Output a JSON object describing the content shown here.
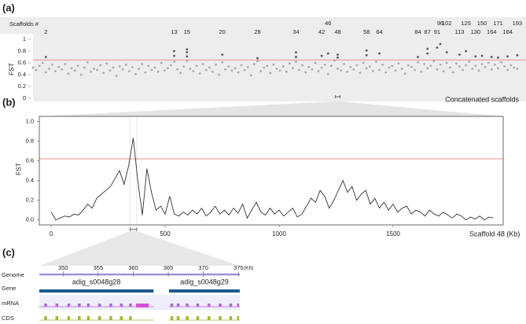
{
  "chart_data": [
    {
      "type": "scatter",
      "label": "(a)",
      "scaffold_title": "Scaffolds #",
      "ylabel": "FST",
      "xlabel": "Concatenated scaffolds",
      "xlim": [
        0,
        152
      ],
      "ylim": [
        0,
        1
      ],
      "yticks": [
        0,
        0.2,
        0.4,
        0.6,
        0.8,
        1
      ],
      "threshold": 0.65,
      "threshold_color": "#e8908a",
      "scaffolds": {
        "labels": [
          "2",
          "13",
          "15",
          "20",
          "28",
          "34",
          "42",
          "46",
          "48",
          "58",
          "64",
          "84",
          "87",
          "91",
          "96",
          "102",
          "113",
          "125",
          "130",
          "150",
          "164",
          "171",
          "184",
          "193"
        ],
        "x": [
          4,
          44,
          48,
          59,
          70,
          82,
          90,
          92,
          95,
          104,
          108,
          120,
          123,
          126,
          127,
          129,
          133,
          135,
          138,
          140,
          143,
          145,
          148,
          151
        ]
      },
      "series": [
        {
          "color": "#a8a8a8",
          "x": [
            0,
            1,
            2,
            3,
            4,
            5,
            6,
            7,
            8,
            9,
            10,
            11,
            12,
            13,
            14,
            15,
            16,
            17,
            18,
            19,
            20,
            21,
            22,
            23,
            24,
            25,
            26,
            27,
            28,
            29,
            30,
            31,
            32,
            33,
            34,
            35,
            36,
            37,
            38,
            39,
            40,
            41,
            42,
            43,
            44,
            45,
            46,
            47,
            48,
            49,
            50,
            51,
            52,
            53,
            54,
            55,
            56,
            57,
            58,
            59,
            60,
            61,
            62,
            63,
            64,
            65,
            66,
            67,
            68,
            69,
            70,
            71,
            72,
            73,
            74,
            75,
            76,
            77,
            78,
            79,
            80,
            81,
            82,
            83,
            84,
            85,
            86,
            87,
            88,
            89,
            90,
            91,
            92,
            93,
            94,
            95,
            96,
            97,
            98,
            99,
            100,
            101,
            102,
            103,
            104,
            105,
            106,
            107,
            108,
            109,
            110,
            111,
            112,
            113,
            114,
            115,
            116,
            117,
            118,
            119,
            120,
            121,
            122,
            123,
            124,
            125,
            126,
            127,
            128,
            129,
            130,
            131,
            132,
            133,
            134,
            135,
            136,
            137,
            138,
            139,
            140,
            141,
            142,
            143,
            144,
            145,
            146,
            147,
            148,
            149,
            150,
            151
          ],
          "values": [
            0.52,
            0.48,
            0.55,
            0.6,
            0.44,
            0.5,
            0.57,
            0.46,
            0.53,
            0.49,
            0.58,
            0.42,
            0.51,
            0.47,
            0.55,
            0.4,
            0.52,
            0.61,
            0.45,
            0.5,
            0.48,
            0.56,
            0.43,
            0.59,
            0.47,
            0.52,
            0.38,
            0.54,
            0.49,
            0.57,
            0.46,
            0.53,
            0.41,
            0.5,
            0.58,
            0.44,
            0.55,
            0.48,
            0.52,
            0.45,
            0.6,
            0.47,
            0.51,
            0.56,
            0.62,
            0.49,
            0.43,
            0.54,
            0.63,
            0.5,
            0.46,
            0.55,
            0.42,
            0.58,
            0.48,
            0.52,
            0.45,
            0.57,
            0.4,
            0.61,
            0.49,
            0.54,
            0.47,
            0.51,
            0.44,
            0.56,
            0.48,
            0.53,
            0.39,
            0.58,
            0.63,
            0.46,
            0.52,
            0.55,
            0.43,
            0.57,
            0.5,
            0.47,
            0.54,
            0.45,
            0.59,
            0.51,
            0.62,
            0.48,
            0.56,
            0.44,
            0.53,
            0.49,
            0.6,
            0.46,
            0.52,
            0.57,
            0.41,
            0.55,
            0.64,
            0.5,
            0.47,
            0.58,
            0.45,
            0.53,
            0.49,
            0.56,
            0.43,
            0.6,
            0.51,
            0.54,
            0.46,
            0.62,
            0.48,
            0.57,
            0.44,
            0.52,
            0.55,
            0.47,
            0.59,
            0.5,
            0.42,
            0.56,
            0.53,
            0.48,
            0.61,
            0.45,
            0.58,
            0.51,
            0.55,
            0.63,
            0.49,
            0.57,
            0.46,
            0.6,
            0.52,
            0.44,
            0.59,
            0.54,
            0.48,
            0.56,
            0.62,
            0.5,
            0.55,
            0.47,
            0.58,
            0.53,
            0.6,
            0.49,
            0.57,
            0.51,
            0.61,
            0.54,
            0.48,
            0.56,
            0.52,
            0.5
          ]
        },
        {
          "color": "#555555",
          "x": [
            4,
            44,
            44,
            48,
            48,
            48,
            59,
            70,
            82,
            82,
            90,
            92,
            95,
            95,
            104,
            104,
            108,
            120,
            123,
            123,
            126,
            127,
            129,
            133,
            135,
            138,
            140,
            143,
            145,
            148,
            151
          ],
          "values": [
            0.7,
            0.72,
            0.8,
            0.71,
            0.78,
            0.83,
            0.74,
            0.68,
            0.7,
            0.78,
            0.72,
            0.76,
            0.69,
            0.74,
            0.73,
            0.81,
            0.76,
            0.7,
            0.76,
            0.84,
            0.86,
            0.92,
            0.78,
            0.74,
            0.8,
            0.71,
            0.72,
            0.7,
            0.69,
            0.71,
            0.73
          ]
        }
      ]
    },
    {
      "type": "line",
      "label": "(b)",
      "ylabel": "FST",
      "xlabel": "Scaffold 48 (Kb)",
      "color": "#333333",
      "xlim": [
        -52,
        1983
      ],
      "ylim": [
        -0.05,
        1.05
      ],
      "xticks": [
        0,
        500,
        1000,
        1500
      ],
      "yticks": [
        {
          "value": 0,
          "label": "0.0"
        },
        0.2,
        0.4,
        0.6,
        0.8,
        {
          "value": 1,
          "label": "1.0"
        }
      ],
      "threshold": 0.62,
      "threshold_color": "#e8908a",
      "x": [
        0,
        20,
        40,
        60,
        80,
        100,
        120,
        140,
        160,
        180,
        200,
        220,
        240,
        260,
        280,
        300,
        320,
        340,
        360,
        380,
        400,
        420,
        440,
        460,
        480,
        500,
        520,
        540,
        560,
        580,
        600,
        620,
        640,
        660,
        680,
        700,
        720,
        740,
        760,
        780,
        800,
        820,
        840,
        860,
        880,
        900,
        920,
        940,
        960,
        980,
        1000,
        1020,
        1040,
        1060,
        1080,
        1100,
        1120,
        1140,
        1160,
        1180,
        1200,
        1220,
        1240,
        1260,
        1280,
        1300,
        1320,
        1340,
        1360,
        1380,
        1400,
        1420,
        1440,
        1460,
        1480,
        1500,
        1520,
        1540,
        1560,
        1580,
        1600,
        1620,
        1640,
        1660,
        1680,
        1700,
        1720,
        1740,
        1760,
        1780,
        1800,
        1820,
        1840,
        1860,
        1880,
        1900,
        1920,
        1940
      ],
      "values": [
        0.08,
        0.0,
        0.02,
        0.04,
        0.03,
        0.06,
        0.05,
        0.1,
        0.16,
        0.12,
        0.22,
        0.26,
        0.3,
        0.34,
        0.42,
        0.5,
        0.36,
        0.55,
        0.83,
        0.4,
        0.05,
        0.52,
        0.28,
        0.1,
        0.14,
        0.06,
        0.24,
        0.06,
        0.04,
        0.08,
        0.05,
        0.1,
        0.06,
        0.12,
        0.04,
        0.08,
        0.14,
        0.06,
        0.1,
        0.05,
        0.12,
        0.07,
        0.16,
        0.02,
        0.1,
        0.18,
        0.08,
        0.05,
        0.12,
        0.06,
        0.1,
        0.04,
        0.08,
        0.12,
        0.03,
        0.06,
        0.14,
        0.22,
        0.18,
        0.3,
        0.24,
        0.12,
        0.2,
        0.3,
        0.4,
        0.28,
        0.34,
        0.2,
        0.26,
        0.3,
        0.16,
        0.22,
        0.12,
        0.18,
        0.1,
        0.16,
        0.08,
        0.12,
        0.14,
        0.06,
        0.1,
        0.08,
        0.04,
        0.1,
        0.06,
        0.04,
        0.08,
        0.05,
        0.02,
        0.06,
        0.04,
        0.0,
        0.03,
        0.01,
        0.04,
        0.0,
        0.03,
        0.02
      ]
    },
    {
      "type": "gene_track",
      "label": "(c)",
      "xlim": [
        346.6,
        375.2
      ],
      "xticks": [
        350,
        355,
        360,
        365,
        370,
        375
      ],
      "unit": "(Kb)",
      "tracks": [
        "Genome",
        "Gene",
        "mRNA",
        "CDS"
      ],
      "colors": {
        "genome": "#9d92d8",
        "gene": "#1f5a8c",
        "mrna": "#b365d9",
        "cds": "#a6b53a",
        "utr": "#d84fd8"
      },
      "genes": [
        {
          "name": "adig_s0048g28",
          "start": 346.6,
          "end": 362.9,
          "exons": [
            [
              347.3,
              347.7
            ],
            [
              348.9,
              349.3
            ],
            [
              350.6,
              351.0
            ],
            [
              352.1,
              352.5
            ],
            [
              353.4,
              353.8
            ],
            [
              355.0,
              355.4
            ],
            [
              356.6,
              357.0
            ],
            [
              358.1,
              358.5
            ],
            [
              359.4,
              359.8
            ]
          ],
          "utr": [
            [
              360.4,
              362.2
            ]
          ]
        },
        {
          "name": "adig_s0048g29",
          "start": 365.1,
          "end": 375.2,
          "exons": [
            [
              365.3,
              365.7
            ],
            [
              366.2,
              366.6
            ],
            [
              367.5,
              367.9
            ],
            [
              369.0,
              369.4
            ],
            [
              370.6,
              371.0
            ],
            [
              372.2,
              372.6
            ],
            [
              373.7,
              374.1
            ],
            [
              374.8,
              375.1
            ]
          ],
          "utr": []
        }
      ]
    }
  ]
}
